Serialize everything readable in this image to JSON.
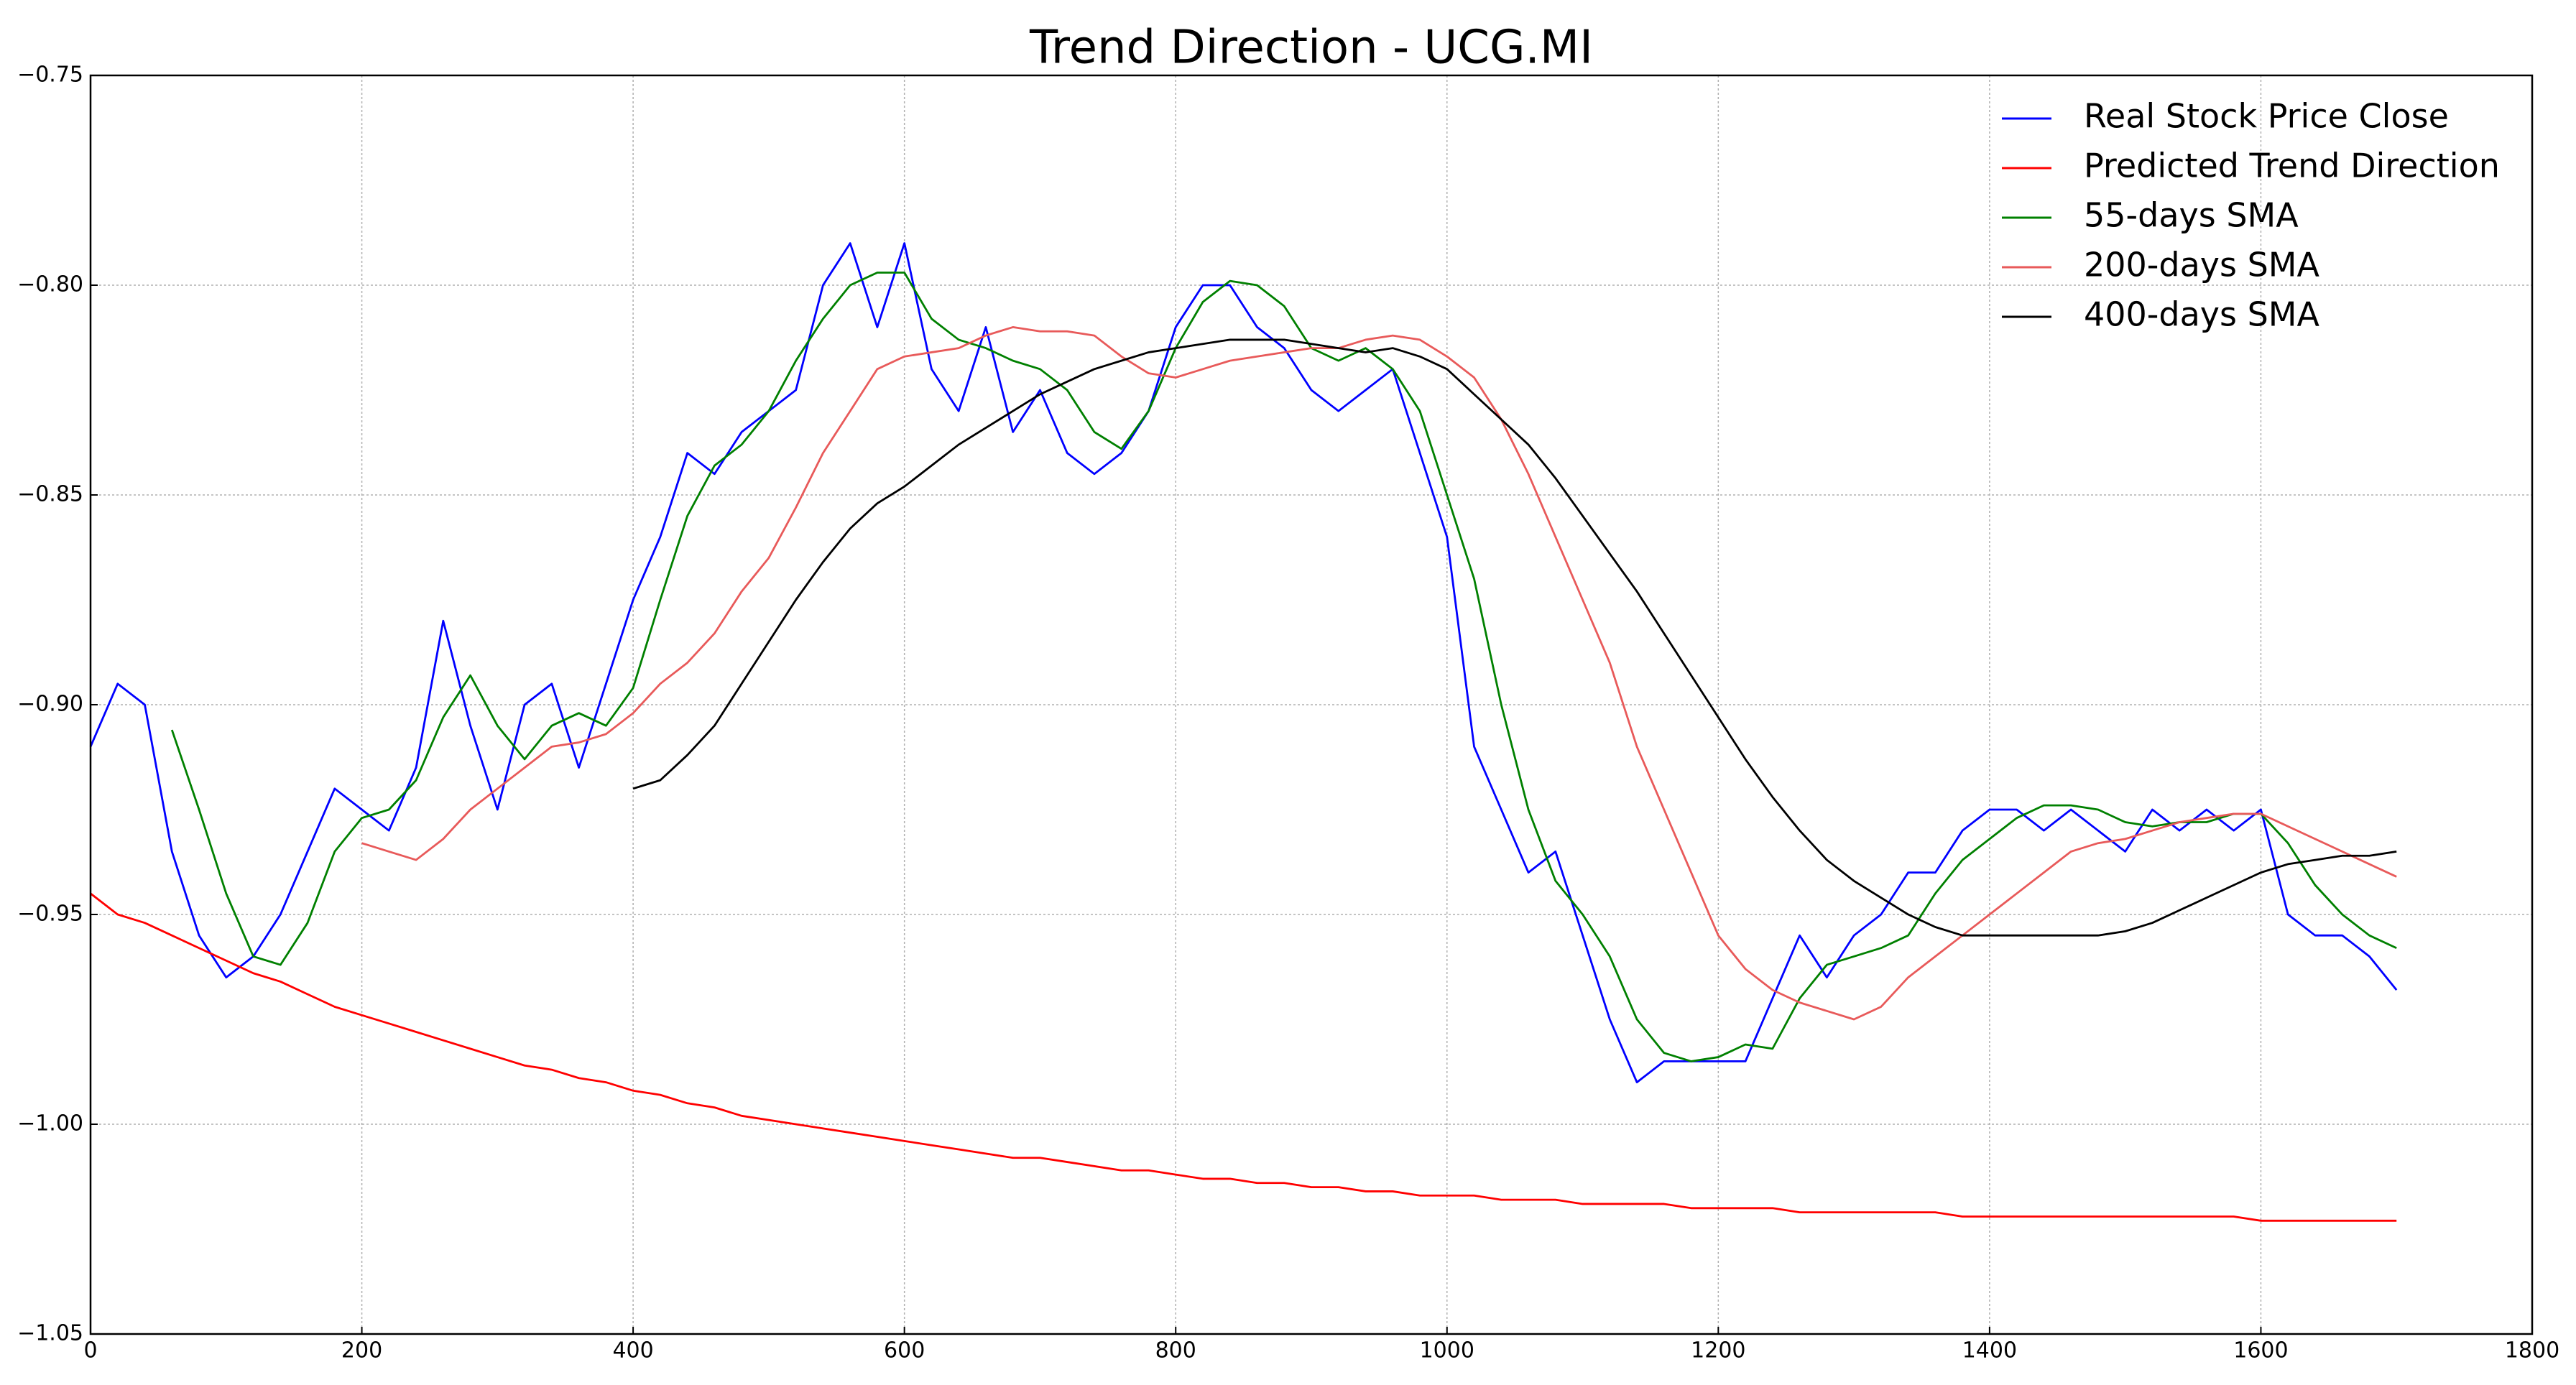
{
  "chart_data": {
    "type": "line",
    "title": "Trend Direction - UCG.MI",
    "x": [
      0,
      20,
      40,
      60,
      80,
      100,
      120,
      140,
      160,
      180,
      200,
      220,
      240,
      260,
      280,
      300,
      320,
      340,
      360,
      380,
      400,
      420,
      440,
      460,
      480,
      500,
      520,
      540,
      560,
      580,
      600,
      620,
      640,
      660,
      680,
      700,
      720,
      740,
      760,
      780,
      800,
      820,
      840,
      860,
      880,
      900,
      920,
      940,
      960,
      980,
      1000,
      1020,
      1040,
      1060,
      1080,
      1100,
      1120,
      1140,
      1160,
      1180,
      1200,
      1220,
      1240,
      1260,
      1280,
      1300,
      1320,
      1340,
      1360,
      1380,
      1400,
      1420,
      1440,
      1460,
      1480,
      1500,
      1520,
      1540,
      1560,
      1580,
      1600,
      1620,
      1640,
      1660,
      1680,
      1700
    ],
    "series": [
      {
        "name": "Real Stock Price Close",
        "color": "#0000ff",
        "values": [
          -0.91,
          -0.895,
          -0.9,
          -0.935,
          -0.955,
          -0.965,
          -0.96,
          -0.95,
          -0.935,
          -0.92,
          -0.925,
          -0.93,
          -0.915,
          -0.88,
          -0.905,
          -0.925,
          -0.9,
          -0.895,
          -0.915,
          -0.895,
          -0.875,
          -0.86,
          -0.84,
          -0.845,
          -0.835,
          -0.83,
          -0.825,
          -0.8,
          -0.79,
          -0.81,
          -0.79,
          -0.82,
          -0.83,
          -0.81,
          -0.835,
          -0.825,
          -0.84,
          -0.845,
          -0.84,
          -0.83,
          -0.81,
          -0.8,
          -0.8,
          -0.81,
          -0.815,
          -0.825,
          -0.83,
          -0.825,
          -0.82,
          -0.84,
          -0.86,
          -0.91,
          -0.925,
          -0.94,
          -0.935,
          -0.955,
          -0.975,
          -0.99,
          -0.985,
          -0.985,
          -0.985,
          -0.985,
          -0.97,
          -0.955,
          -0.965,
          -0.955,
          -0.95,
          -0.94,
          -0.94,
          -0.93,
          -0.925,
          -0.925,
          -0.93,
          -0.925,
          -0.93,
          -0.935,
          -0.925,
          -0.93,
          -0.925,
          -0.93,
          -0.925,
          -0.95,
          -0.955,
          -0.955,
          -0.96,
          -0.968
        ]
      },
      {
        "name": "Predicted Trend Direction",
        "color": "#ff0000",
        "values": [
          -0.945,
          -0.95,
          -0.952,
          -0.955,
          -0.958,
          -0.961,
          -0.964,
          -0.966,
          -0.969,
          -0.972,
          -0.974,
          -0.976,
          -0.978,
          -0.98,
          -0.982,
          -0.984,
          -0.986,
          -0.987,
          -0.989,
          -0.99,
          -0.992,
          -0.993,
          -0.995,
          -0.996,
          -0.998,
          -0.999,
          -1.0,
          -1.001,
          -1.002,
          -1.003,
          -1.004,
          -1.005,
          -1.006,
          -1.007,
          -1.008,
          -1.008,
          -1.009,
          -1.01,
          -1.011,
          -1.011,
          -1.012,
          -1.013,
          -1.013,
          -1.014,
          -1.014,
          -1.015,
          -1.015,
          -1.016,
          -1.016,
          -1.017,
          -1.017,
          -1.017,
          -1.018,
          -1.018,
          -1.018,
          -1.019,
          -1.019,
          -1.019,
          -1.019,
          -1.02,
          -1.02,
          -1.02,
          -1.02,
          -1.021,
          -1.021,
          -1.021,
          -1.021,
          -1.021,
          -1.021,
          -1.022,
          -1.022,
          -1.022,
          -1.022,
          -1.022,
          -1.022,
          -1.022,
          -1.022,
          -1.022,
          -1.022,
          -1.022,
          -1.023,
          -1.023,
          -1.023,
          -1.023,
          -1.023,
          -1.023
        ]
      },
      {
        "name": "55-days SMA",
        "color": "#008000",
        "values": [
          null,
          null,
          null,
          -0.906,
          -0.925,
          -0.945,
          -0.96,
          -0.962,
          -0.952,
          -0.935,
          -0.927,
          -0.925,
          -0.918,
          -0.903,
          -0.893,
          -0.905,
          -0.913,
          -0.905,
          -0.902,
          -0.905,
          -0.896,
          -0.875,
          -0.855,
          -0.843,
          -0.838,
          -0.83,
          -0.818,
          -0.808,
          -0.8,
          -0.797,
          -0.797,
          -0.808,
          -0.813,
          -0.815,
          -0.818,
          -0.82,
          -0.825,
          -0.835,
          -0.839,
          -0.83,
          -0.815,
          -0.804,
          -0.799,
          -0.8,
          -0.805,
          -0.815,
          -0.818,
          -0.815,
          -0.82,
          -0.83,
          -0.85,
          -0.87,
          -0.9,
          -0.925,
          -0.942,
          -0.95,
          -0.96,
          -0.975,
          -0.983,
          -0.985,
          -0.984,
          -0.981,
          -0.982,
          -0.97,
          -0.962,
          -0.96,
          -0.958,
          -0.955,
          -0.945,
          -0.937,
          -0.932,
          -0.927,
          -0.924,
          -0.924,
          -0.925,
          -0.928,
          -0.929,
          -0.928,
          -0.928,
          -0.926,
          -0.926,
          -0.933,
          -0.943,
          -0.95,
          -0.955,
          -0.958
        ]
      },
      {
        "name": "200-days SMA",
        "color": "#e85a5a",
        "values": [
          null,
          null,
          null,
          null,
          null,
          null,
          null,
          null,
          null,
          null,
          -0.933,
          -0.935,
          -0.937,
          -0.932,
          -0.925,
          -0.92,
          -0.915,
          -0.91,
          -0.909,
          -0.907,
          -0.902,
          -0.895,
          -0.89,
          -0.883,
          -0.873,
          -0.865,
          -0.853,
          -0.84,
          -0.83,
          -0.82,
          -0.817,
          -0.816,
          -0.815,
          -0.812,
          -0.81,
          -0.811,
          -0.811,
          -0.812,
          -0.817,
          -0.821,
          -0.822,
          -0.82,
          -0.818,
          -0.817,
          -0.816,
          -0.815,
          -0.815,
          -0.813,
          -0.812,
          -0.813,
          -0.817,
          -0.822,
          -0.832,
          -0.845,
          -0.86,
          -0.875,
          -0.89,
          -0.91,
          -0.925,
          -0.94,
          -0.955,
          -0.963,
          -0.968,
          -0.971,
          -0.973,
          -0.975,
          -0.972,
          -0.965,
          -0.96,
          -0.955,
          -0.95,
          -0.945,
          -0.94,
          -0.935,
          -0.933,
          -0.932,
          -0.93,
          -0.928,
          -0.927,
          -0.926,
          -0.926,
          -0.929,
          -0.932,
          -0.935,
          -0.938,
          -0.941
        ]
      },
      {
        "name": "400-days SMA",
        "color": "#000000",
        "values": [
          null,
          null,
          null,
          null,
          null,
          null,
          null,
          null,
          null,
          null,
          null,
          null,
          null,
          null,
          null,
          null,
          null,
          null,
          null,
          null,
          -0.92,
          -0.918,
          -0.912,
          -0.905,
          -0.895,
          -0.885,
          -0.875,
          -0.866,
          -0.858,
          -0.852,
          -0.848,
          -0.843,
          -0.838,
          -0.834,
          -0.83,
          -0.826,
          -0.823,
          -0.82,
          -0.818,
          -0.816,
          -0.815,
          -0.814,
          -0.813,
          -0.813,
          -0.813,
          -0.814,
          -0.815,
          -0.816,
          -0.815,
          -0.817,
          -0.82,
          -0.826,
          -0.832,
          -0.838,
          -0.846,
          -0.855,
          -0.864,
          -0.873,
          -0.883,
          -0.893,
          -0.903,
          -0.913,
          -0.922,
          -0.93,
          -0.937,
          -0.942,
          -0.946,
          -0.95,
          -0.953,
          -0.955,
          -0.955,
          -0.955,
          -0.955,
          -0.955,
          -0.955,
          -0.954,
          -0.952,
          -0.949,
          -0.946,
          -0.943,
          -0.94,
          -0.938,
          -0.937,
          -0.936,
          -0.936,
          -0.935
        ]
      }
    ],
    "xlim": [
      0,
      1800
    ],
    "xticks": [
      0,
      200,
      400,
      600,
      800,
      1000,
      1200,
      1400,
      1600,
      1800
    ],
    "ylim": [
      -1.05,
      -0.75
    ],
    "yticks": [
      {
        "value": -1.05,
        "label": "−1.05"
      },
      {
        "value": -1.0,
        "label": "−1.00"
      },
      {
        "value": -0.95,
        "label": "−0.95"
      },
      {
        "value": -0.9,
        "label": "−0.90"
      },
      {
        "value": -0.85,
        "label": "−0.85"
      },
      {
        "value": -0.8,
        "label": "−0.80"
      },
      {
        "value": -0.75,
        "label": "−0.75"
      }
    ],
    "grid": true,
    "legend": "upper right"
  }
}
